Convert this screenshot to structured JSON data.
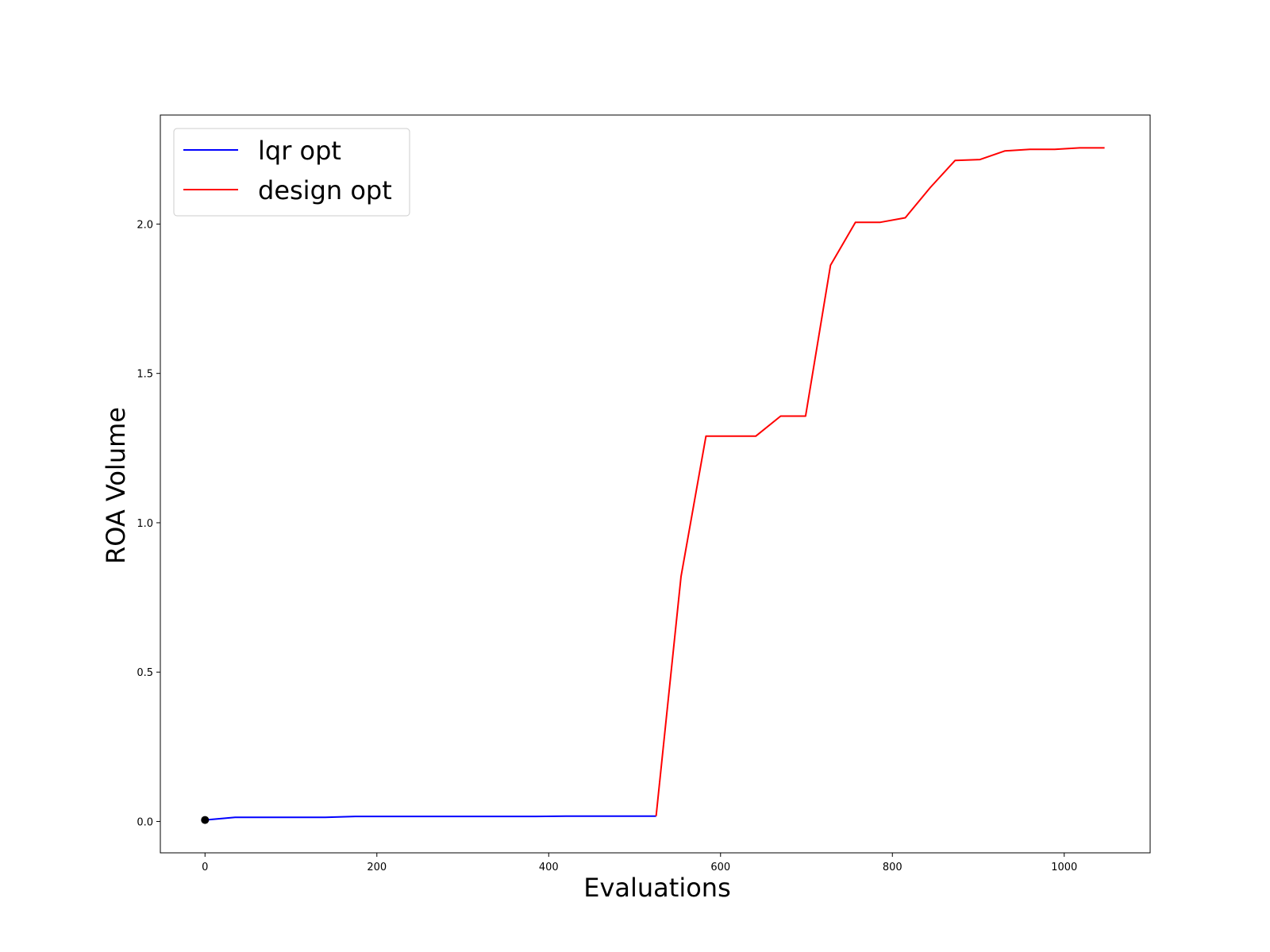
{
  "chart_data": {
    "type": "line",
    "xlabel": "Evaluations",
    "ylabel": "ROA Volume",
    "xlim": [
      -52,
      1100
    ],
    "ylim": [
      -0.105,
      2.365
    ],
    "xticks": [
      0,
      200,
      400,
      600,
      800,
      1000
    ],
    "xtick_labels": [
      "0",
      "200",
      "400",
      "600",
      "800",
      "1000"
    ],
    "yticks": [
      0.0,
      0.5,
      1.0,
      1.5,
      2.0
    ],
    "ytick_labels": [
      "0.0",
      "0.5",
      "1.0",
      "1.5",
      "2.0"
    ],
    "grid": false,
    "legend_position": "top-left",
    "series": [
      {
        "name": "lqr opt",
        "color": "#0000ff",
        "x": [
          0,
          35,
          140,
          175,
          385,
          420,
          525
        ],
        "y": [
          0.005,
          0.014,
          0.014,
          0.017,
          0.017,
          0.018,
          0.018
        ]
      },
      {
        "name": "design opt",
        "color": "#ff0000",
        "x": [
          525,
          554,
          583,
          612,
          641,
          670,
          699,
          728,
          757,
          786,
          815,
          844,
          873,
          902,
          931,
          960,
          989,
          1018,
          1047
        ],
        "y": [
          0.018,
          0.82,
          1.29,
          1.29,
          1.29,
          1.357,
          1.357,
          1.862,
          2.006,
          2.006,
          2.021,
          2.122,
          2.213,
          2.216,
          2.245,
          2.25,
          2.25,
          2.255,
          2.255
        ]
      }
    ],
    "markers": [
      {
        "x": 0,
        "y": 0.005,
        "color": "#000000"
      }
    ]
  }
}
